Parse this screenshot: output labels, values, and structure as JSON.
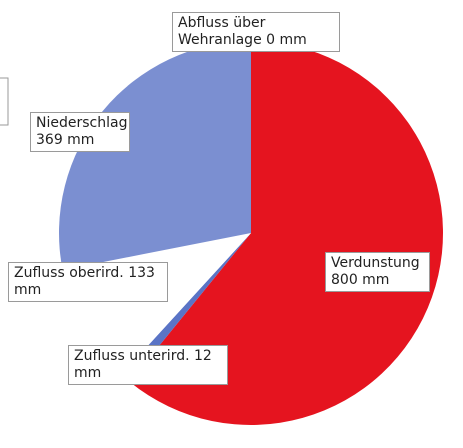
{
  "chart_data": {
    "type": "pie",
    "categories": [
      "Verdunstung",
      "Zufluss unterird.",
      "Zufluss oberird.",
      "Niederschlag",
      "Abfluss über Wehranlage"
    ],
    "values": [
      800,
      12,
      133,
      369,
      0
    ],
    "value_labels": [
      "800 mm",
      "12 mm",
      "133 mm",
      "369 mm",
      "0 mm"
    ],
    "colors": [
      "#e5141f",
      "#5a74c6",
      "#ffffff",
      "#7b8fd1",
      "#4f6fc4"
    ]
  }
}
